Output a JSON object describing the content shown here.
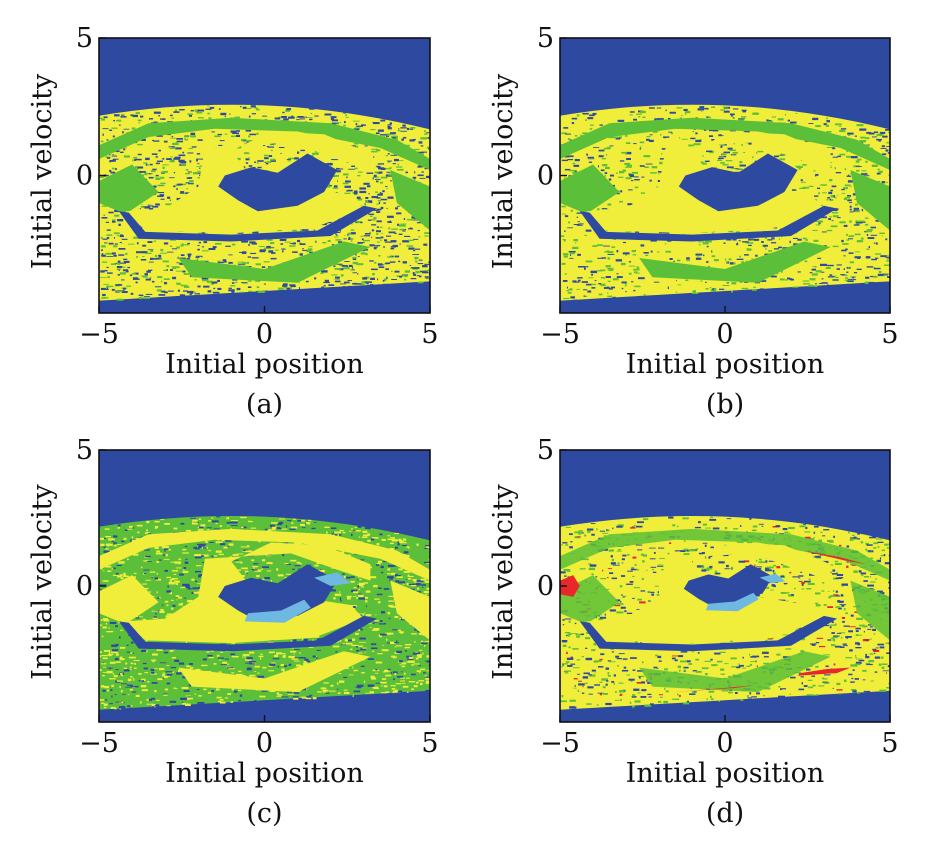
{
  "colors": {
    "blue": "#2d4aa0",
    "yellow": "#f0ee3a",
    "green": "#5cbf3a",
    "light_blue": "#6fb8e2",
    "red": "#e8272b"
  },
  "chart_data": [
    {
      "type": "heatmap",
      "panel_label": "(a)",
      "xlabel": "Initial position",
      "ylabel": "Initial velocity",
      "xlim": [
        -5,
        5
      ],
      "ylim": [
        -5,
        5
      ],
      "xticks": [
        -5,
        0,
        5
      ],
      "yticks": [
        0,
        5
      ],
      "xtick_labels": [
        "−5",
        "0",
        "5"
      ],
      "ytick_labels": [
        "0",
        "5"
      ],
      "basin_colors": [
        "blue",
        "yellow",
        "green"
      ],
      "grid": false
    },
    {
      "type": "heatmap",
      "panel_label": "(b)",
      "xlabel": "Initial position",
      "ylabel": "Initial velocity",
      "xlim": [
        -5,
        5
      ],
      "ylim": [
        -5,
        5
      ],
      "xticks": [
        -5,
        0,
        5
      ],
      "yticks": [
        0,
        5
      ],
      "xtick_labels": [
        "−5",
        "0",
        "5"
      ],
      "ytick_labels": [
        "0",
        "5"
      ],
      "basin_colors": [
        "blue",
        "yellow",
        "green"
      ],
      "grid": false
    },
    {
      "type": "heatmap",
      "panel_label": "(c)",
      "xlabel": "Initial position",
      "ylabel": "Initial velocity",
      "xlim": [
        -5,
        5
      ],
      "ylim": [
        -5,
        5
      ],
      "xticks": [
        -5,
        0,
        5
      ],
      "yticks": [
        0,
        5
      ],
      "xtick_labels": [
        "−5",
        "0",
        "5"
      ],
      "ytick_labels": [
        "0",
        "5"
      ],
      "basin_colors": [
        "blue",
        "yellow",
        "green",
        "light_blue"
      ],
      "grid": false
    },
    {
      "type": "heatmap",
      "panel_label": "(d)",
      "xlabel": "Initial position",
      "ylabel": "Initial velocity",
      "xlim": [
        -5,
        5
      ],
      "ylim": [
        -5,
        5
      ],
      "xticks": [
        -5,
        0,
        5
      ],
      "yticks": [
        0,
        5
      ],
      "xtick_labels": [
        "−5",
        "0",
        "5"
      ],
      "ytick_labels": [
        "0",
        "5"
      ],
      "basin_colors": [
        "blue",
        "yellow",
        "green",
        "light_blue",
        "red"
      ],
      "grid": false
    }
  ]
}
